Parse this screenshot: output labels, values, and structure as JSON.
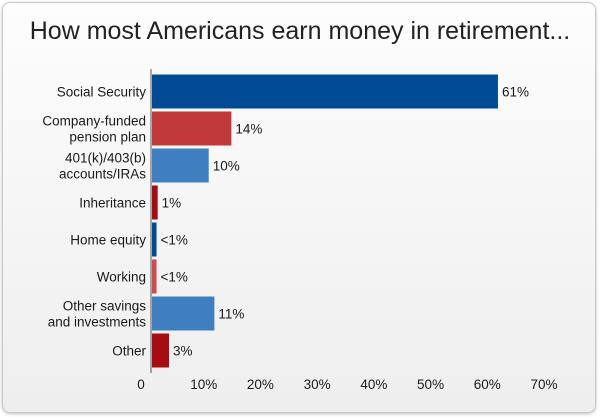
{
  "chart_data": {
    "type": "bar",
    "orientation": "horizontal",
    "title": "How most Americans earn money in retirement...",
    "categories": [
      [
        "Social Security"
      ],
      [
        "Company-funded",
        "pension plan"
      ],
      [
        "401(k)/403(b)",
        "accounts/IRAs"
      ],
      [
        "Inheritance"
      ],
      [
        "Home equity"
      ],
      [
        "Working"
      ],
      [
        "Other savings",
        "and investments"
      ],
      [
        "Other"
      ]
    ],
    "values": [
      61,
      14,
      10,
      1,
      0.8,
      0.8,
      11,
      3
    ],
    "value_labels": [
      "61%",
      "14%",
      "10%",
      "1%",
      "<1%",
      "<1%",
      "11%",
      "3%"
    ],
    "bar_colors": [
      "#004b93",
      "#c0393b",
      "#3f7fc0",
      "#a60d12",
      "#004b93",
      "#d04b4b",
      "#3f7fc0",
      "#a60d12"
    ],
    "xlim": [
      0,
      70
    ],
    "ticks": [
      0,
      10,
      20,
      30,
      40,
      50,
      60,
      70
    ],
    "tick_labels": [
      "0",
      "10%",
      "20%",
      "30%",
      "40%",
      "50%",
      "60%",
      "70%"
    ],
    "xlabel": "",
    "ylabel": "",
    "grid": false
  }
}
